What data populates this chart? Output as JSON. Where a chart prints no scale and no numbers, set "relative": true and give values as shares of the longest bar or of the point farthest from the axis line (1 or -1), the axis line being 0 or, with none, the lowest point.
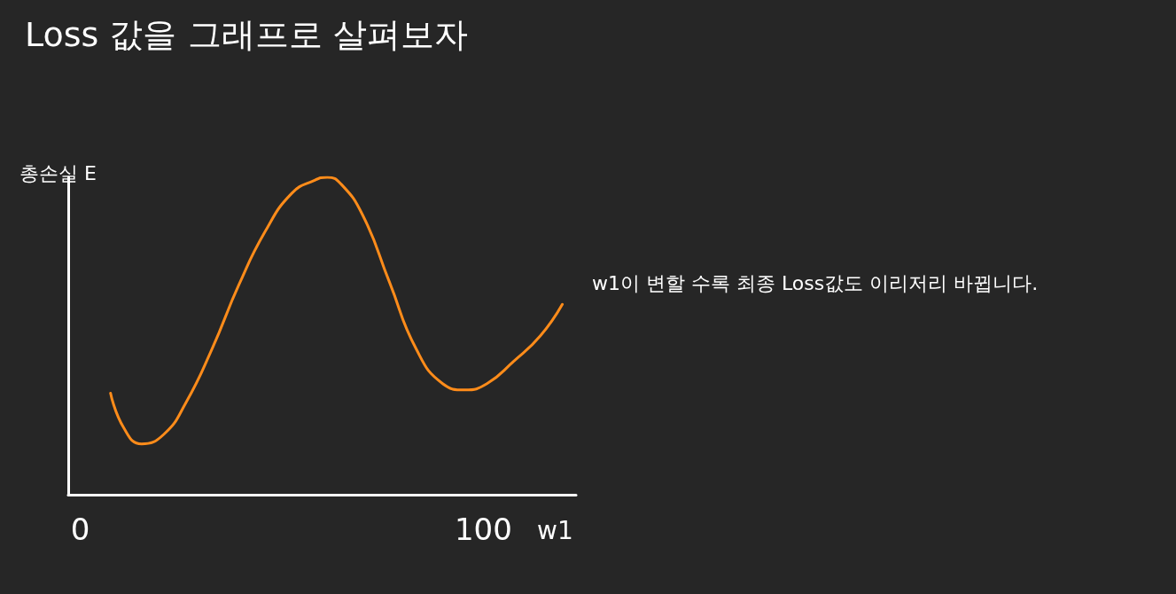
{
  "chart_data": {
    "type": "line",
    "title": "Loss 값을 그래프로 살펴보자",
    "xlabel": "w1",
    "ylabel": "총손실 E",
    "annotations": [
      "w1이 변할 수록 최종 Loss값도 이리저리 바뀝니다."
    ],
    "relative": true,
    "xlim": [
      -3,
      123
    ],
    "xticks": [
      0,
      100
    ],
    "grid": false,
    "marker": "none",
    "line_style": "solid",
    "x": [
      7.5,
      10.8,
      15.2,
      20.7,
      26.2,
      32.7,
      39.3,
      45.9,
      52.5,
      58.0,
      61.3,
      64.6,
      70.1,
      76.7,
      83.3,
      89.9,
      95.4,
      100.9,
      107.5,
      114.1,
      119.6
    ],
    "series": [
      {
        "color": "#ff8c1a",
        "values": [
          0.32,
          0.21,
          0.16,
          0.19,
          0.29,
          0.46,
          0.66,
          0.83,
          0.95,
          0.99,
          1,
          0.98,
          0.88,
          0.67,
          0.46,
          0.35,
          0.33,
          0.35,
          0.42,
          0.5,
          0.6
        ]
      }
    ]
  }
}
